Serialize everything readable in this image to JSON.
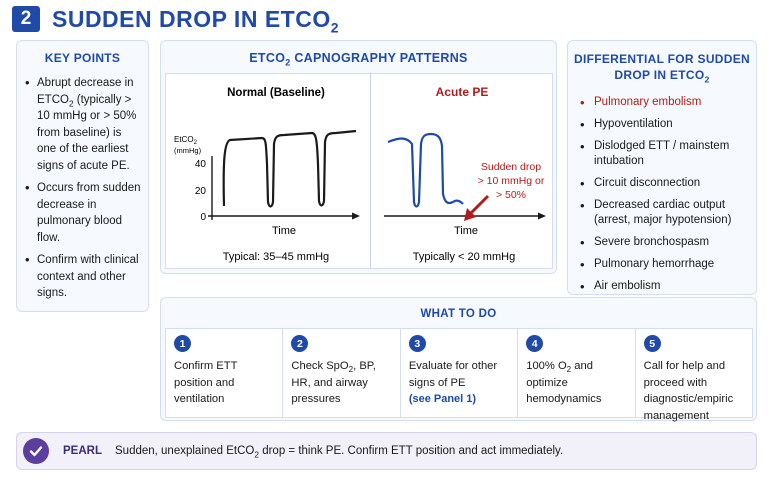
{
  "header": {
    "number": "2",
    "title_main": "SUDDEN DROP IN ETCO",
    "title_sub": "2"
  },
  "key_points": {
    "title": "KEY POINTS",
    "items": [
      [
        "Abrupt decrease in ETCO",
        "2",
        " (typically > 10 mmHg or > 50% from baseline) is one of the earliest signs of acute PE."
      ],
      [
        "Occurs from sudden decrease in pulmonary blood flow."
      ],
      [
        "Confirm with clinical context and other signs."
      ]
    ]
  },
  "capnography": {
    "title_main": "ETCO",
    "title_sub": "2",
    "title_rest": " CAPNOGRAPHY PATTERNS",
    "normal": {
      "title": "Normal (Baseline)",
      "y_label_main": "EtCO",
      "y_label_sub": "2",
      "y_label_unit": "(mmHg)",
      "y_ticks": [
        "40",
        "20",
        "0"
      ],
      "x_label": "Time",
      "caption": "Typical: 35–45 mmHg"
    },
    "pe": {
      "title": "Acute PE",
      "annotation": [
        "Sudden drop",
        "> 10 mmHg or",
        "> 50%"
      ],
      "x_label": "Time",
      "caption": "Typically < 20 mmHg"
    },
    "colors": {
      "normal_trace": "#1a1a1a",
      "pe_trace": "#1f4aa8",
      "alert": "#b01c1c"
    }
  },
  "differential": {
    "title_line1": "DIFFERENTIAL FOR SUDDEN",
    "title_line2_main": "DROP IN ETCO",
    "title_line2_sub": "2",
    "items": [
      "Pulmonary embolism",
      "Hypoventilation",
      "Dislodged ETT / mainstem intubation",
      "Circuit disconnection",
      "Decreased cardiac output (arrest, major hypotension)",
      "Severe bronchospasm",
      "Pulmonary hemorrhage",
      "Air embolism"
    ]
  },
  "what_to_do": {
    "title": "WHAT TO DO",
    "steps": [
      {
        "num": "1",
        "text": "Confirm ETT position and ventilation"
      },
      {
        "num": "2",
        "text_a": "Check SpO",
        "text_sub": "2",
        "text_b": ", BP, HR, and airway pressures"
      },
      {
        "num": "3",
        "text": "Evaluate for other signs of PE",
        "link": "(see Panel 1)"
      },
      {
        "num": "4",
        "text_a": "100% O",
        "text_sub": "2",
        "text_b": " and optimize hemodynamics"
      },
      {
        "num": "5",
        "text": "Call for help and proceed with diagnostic/empiric management"
      }
    ]
  },
  "pearl": {
    "label": "PEARL",
    "text_a": "Sudden, unexplained EtCO",
    "text_sub": "2",
    "text_b": " drop = think PE. Confirm ETT position and act immediately."
  }
}
